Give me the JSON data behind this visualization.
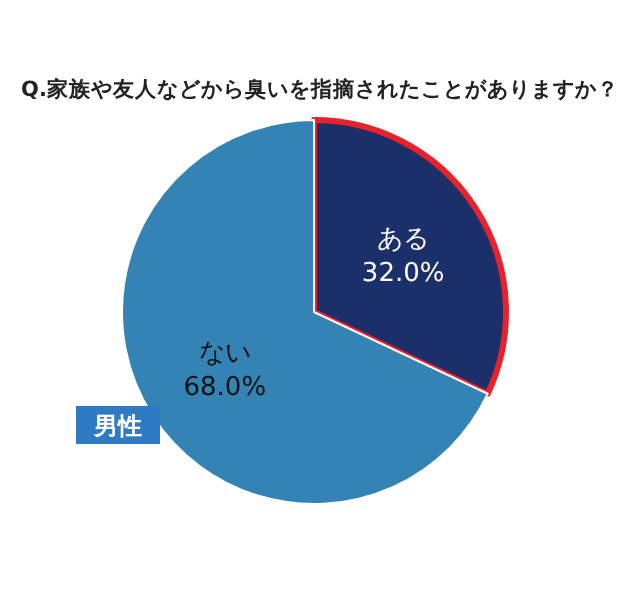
{
  "chart_data": {
    "type": "pie",
    "title": "Q.家族や友人などから臭いを指摘されたことがありますか？",
    "categories": [
      "ある",
      "ない"
    ],
    "values": [
      32.0,
      68.0
    ],
    "value_labels": [
      "32.0%",
      "68.0%"
    ],
    "colors": [
      "#1b2f6b",
      "#3483b5"
    ],
    "annotations": [
      "男性"
    ]
  }
}
